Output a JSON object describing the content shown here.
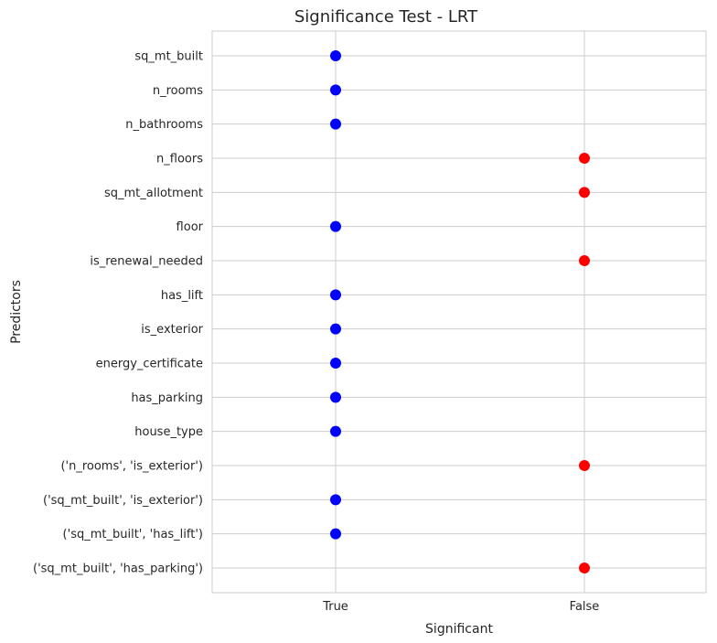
{
  "chart_data": {
    "type": "scatter",
    "title": "Significance Test - LRT",
    "xlabel": "Significant",
    "ylabel": "Predictors",
    "x_categories": [
      "True",
      "False"
    ],
    "y_categories": [
      "sq_mt_built",
      "n_rooms",
      "n_bathrooms",
      "n_floors",
      "sq_mt_allotment",
      "floor",
      "is_renewal_needed",
      "has_lift",
      "is_exterior",
      "energy_certificate",
      "has_parking",
      "house_type",
      "('n_rooms', 'is_exterior')",
      "('sq_mt_built', 'is_exterior')",
      "('sq_mt_built', 'has_lift')",
      "('sq_mt_built', 'has_parking')"
    ],
    "points": [
      {
        "predictor": "sq_mt_built",
        "significant": "True"
      },
      {
        "predictor": "n_rooms",
        "significant": "True"
      },
      {
        "predictor": "n_bathrooms",
        "significant": "True"
      },
      {
        "predictor": "n_floors",
        "significant": "False"
      },
      {
        "predictor": "sq_mt_allotment",
        "significant": "False"
      },
      {
        "predictor": "floor",
        "significant": "True"
      },
      {
        "predictor": "is_renewal_needed",
        "significant": "False"
      },
      {
        "predictor": "has_lift",
        "significant": "True"
      },
      {
        "predictor": "is_exterior",
        "significant": "True"
      },
      {
        "predictor": "energy_certificate",
        "significant": "True"
      },
      {
        "predictor": "has_parking",
        "significant": "True"
      },
      {
        "predictor": "house_type",
        "significant": "True"
      },
      {
        "predictor": "('n_rooms', 'is_exterior')",
        "significant": "False"
      },
      {
        "predictor": "('sq_mt_built', 'is_exterior')",
        "significant": "True"
      },
      {
        "predictor": "('sq_mt_built', 'has_lift')",
        "significant": "True"
      },
      {
        "predictor": "('sq_mt_built', 'has_parking')",
        "significant": "False"
      }
    ],
    "colors": {
      "True": "#0000ff",
      "False": "#ff0000"
    },
    "grid": true
  }
}
